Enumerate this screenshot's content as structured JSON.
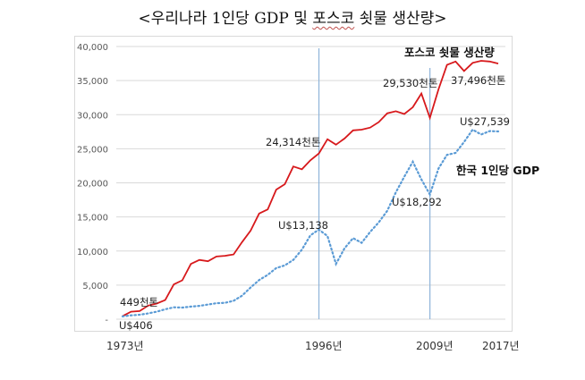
{
  "title": {
    "prefix": "<우리나라 1인당 GDP 및 ",
    "underlined": "포스코",
    "suffix": " 쇳물 생산량>"
  },
  "chart_data": {
    "type": "line",
    "title": "<우리나라 1인당 GDP 및 포스코 쇳물 생산량>",
    "xlabel": "",
    "ylabel": "",
    "ylim": [
      0,
      40000
    ],
    "grid": true,
    "y_ticks": [
      "-",
      "5,000",
      "10,000",
      "15,000",
      "20,000",
      "25,000",
      "30,000",
      "35,000",
      "40,000"
    ],
    "x_tick_labels": [
      "1973년",
      "1996년",
      "2009년",
      "2017년"
    ],
    "reference_lines_years": [
      1996,
      2009
    ],
    "x": [
      1973,
      1974,
      1975,
      1976,
      1977,
      1978,
      1979,
      1980,
      1981,
      1982,
      1983,
      1984,
      1985,
      1986,
      1987,
      1988,
      1989,
      1990,
      1991,
      1992,
      1993,
      1994,
      1995,
      1996,
      1997,
      1998,
      1999,
      2000,
      2001,
      2002,
      2003,
      2004,
      2005,
      2006,
      2007,
      2008,
      2009,
      2010,
      2011,
      2012,
      2013,
      2014,
      2015,
      2016,
      2017
    ],
    "series": [
      {
        "name": "포스코 쇳물 생산량",
        "unit": "천톤",
        "color": "#d7191c",
        "style": "solid",
        "values": [
          449,
          1100,
          1200,
          2000,
          2300,
          2800,
          5100,
          5700,
          8100,
          8700,
          8500,
          9200,
          9300,
          9500,
          11300,
          13000,
          15500,
          16100,
          19000,
          19800,
          22400,
          22000,
          23300,
          24314,
          26400,
          25600,
          26500,
          27700,
          27800,
          28100,
          28900,
          30200,
          30500,
          30100,
          31100,
          33100,
          29530,
          33700,
          37300,
          37800,
          36400,
          37600,
          37900,
          37800,
          37496
        ]
      },
      {
        "name": "한국 1인당 GDP",
        "unit": "US$",
        "color": "#5b9bd5",
        "style": "dotted",
        "values": [
          406,
          560,
          650,
          850,
          1100,
          1450,
          1750,
          1700,
          1850,
          1950,
          2150,
          2350,
          2400,
          2700,
          3450,
          4650,
          5750,
          6500,
          7500,
          7900,
          8700,
          10200,
          12300,
          13138,
          12200,
          8100,
          10400,
          11900,
          11200,
          12800,
          14200,
          15900,
          18600,
          20900,
          23100,
          20500,
          18292,
          22100,
          24100,
          24400,
          26000,
          27800,
          27100,
          27600,
          27539
        ]
      }
    ],
    "annotations": [
      {
        "text": "449천톤",
        "year": 1973,
        "series": 0
      },
      {
        "text": "U$406",
        "year": 1973,
        "series": 1
      },
      {
        "text": "24,314천톤",
        "year": 1996,
        "series": 0
      },
      {
        "text": "U$13,138",
        "year": 1996,
        "series": 1
      },
      {
        "text": "29,530천톤",
        "year": 2009,
        "series": 0
      },
      {
        "text": "U$18,292",
        "year": 2009,
        "series": 1
      },
      {
        "text": "37,496천톤",
        "year": 2017,
        "series": 0
      },
      {
        "text": "U$27,539",
        "year": 2017,
        "series": 1
      }
    ],
    "legend_labels": [
      "포스코 쇳물 생산량",
      "한국 1인당 GDP"
    ]
  },
  "labels": {
    "y_ticks": [
      "-",
      "5,000",
      "10,000",
      "15,000",
      "20,000",
      "25,000",
      "30,000",
      "35,000",
      "40,000"
    ],
    "x_ticks": [
      "1973년",
      "1996년",
      "2009년",
      "2017년"
    ],
    "series_steel": "포스코 쇳물 생산량",
    "series_gdp": "한국 1인당 GDP",
    "ann_steel_1973": "449천톤",
    "ann_gdp_1973": "U$406",
    "ann_steel_1996": "24,314천톤",
    "ann_gdp_1996": "U$13,138",
    "ann_steel_2009": "29,530천톤",
    "ann_gdp_2009": "U$18,292",
    "ann_steel_2017": "37,496천톤",
    "ann_gdp_2017": "U$27,539"
  }
}
